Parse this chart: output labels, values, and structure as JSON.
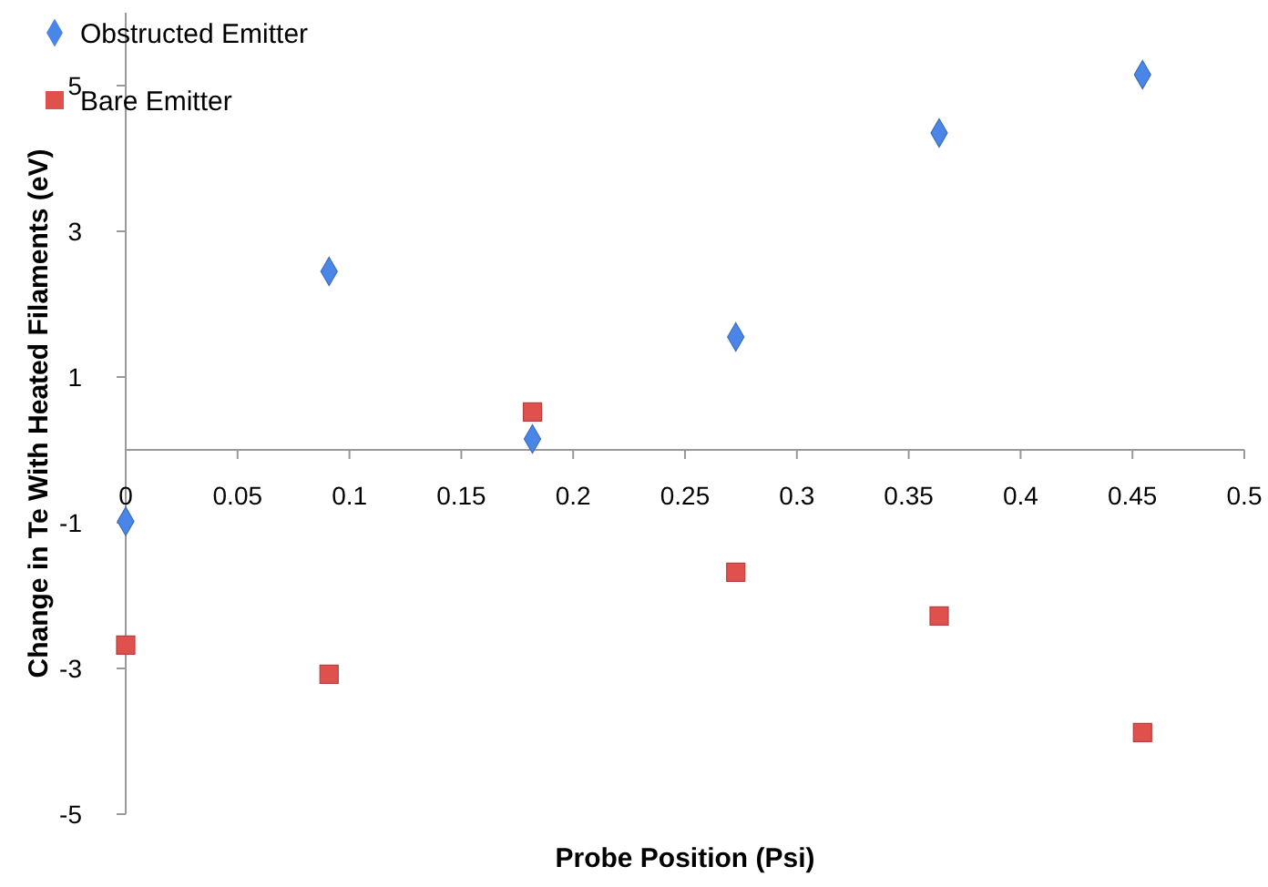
{
  "chart_data": {
    "type": "scatter",
    "xlabel": "Probe Position (Psi)",
    "ylabel": "Change in Te With Heated Filaments (eV)",
    "x": [
      0,
      0.0909,
      0.1818,
      0.2727,
      0.3636,
      0.4545
    ],
    "xlim": [
      0,
      0.5
    ],
    "xticks": [
      0,
      0.05,
      0.1,
      0.15,
      0.2,
      0.25,
      0.3,
      0.35,
      0.4,
      0.45,
      0.5
    ],
    "ylim": [
      -5,
      6
    ],
    "yticks": [
      -5,
      -3,
      -1,
      1,
      3,
      5
    ],
    "grid": false,
    "legend": "top left",
    "series": [
      {
        "name": "Obstructed Emitter",
        "color": "#4a86e8",
        "marker": "diamond",
        "values": [
          -0.98,
          2.45,
          0.15,
          1.55,
          4.35,
          5.15
        ]
      },
      {
        "name": "Bare Emitter",
        "color": "#e0504d",
        "marker": "square",
        "values": [
          -2.68,
          -3.08,
          0.52,
          -1.68,
          -2.28,
          -3.88
        ]
      }
    ]
  }
}
